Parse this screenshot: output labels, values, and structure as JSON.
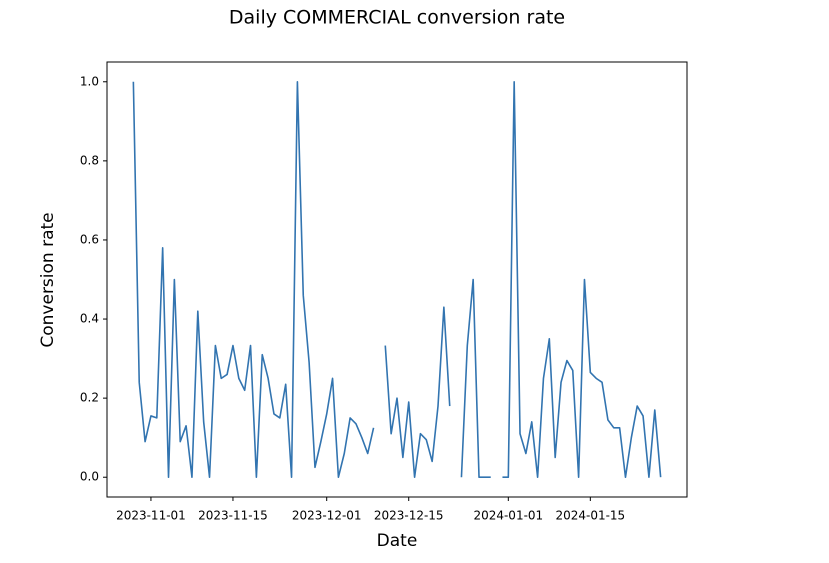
{
  "chart_data": {
    "type": "line",
    "title": "Daily COMMERCIAL conversion rate",
    "x_label": "Date",
    "y_label": "Conversion rate",
    "x": [
      "2023-10-29",
      "2023-10-30",
      "2023-10-31",
      "2023-11-01",
      "2023-11-02",
      "2023-11-03",
      "2023-11-04",
      "2023-11-05",
      "2023-11-06",
      "2023-11-07",
      "2023-11-08",
      "2023-11-09",
      "2023-11-10",
      "2023-11-11",
      "2023-11-12",
      "2023-11-13",
      "2023-11-14",
      "2023-11-15",
      "2023-11-16",
      "2023-11-17",
      "2023-11-18",
      "2023-11-19",
      "2023-11-20",
      "2023-11-21",
      "2023-11-22",
      "2023-11-23",
      "2023-11-24",
      "2023-11-25",
      "2023-11-26",
      "2023-11-27",
      "2023-11-28",
      "2023-11-29",
      "2023-11-30",
      "2023-12-01",
      "2023-12-02",
      "2023-12-03",
      "2023-12-04",
      "2023-12-05",
      "2023-12-06",
      "2023-12-07",
      "2023-12-08",
      "2023-12-09",
      "2023-12-10",
      "2023-12-11",
      "2023-12-12",
      "2023-12-13",
      "2023-12-14",
      "2023-12-15",
      "2023-12-16",
      "2023-12-17",
      "2023-12-18",
      "2023-12-19",
      "2023-12-20",
      "2023-12-21",
      "2023-12-22",
      "2023-12-23",
      "2023-12-24",
      "2023-12-25",
      "2023-12-26",
      "2023-12-27",
      "2023-12-28",
      "2023-12-29",
      "2023-12-30",
      "2023-12-31",
      "2024-01-01",
      "2024-01-02",
      "2024-01-03",
      "2024-01-04",
      "2024-01-05",
      "2024-01-06",
      "2024-01-07",
      "2024-01-08",
      "2024-01-09",
      "2024-01-10",
      "2024-01-11",
      "2024-01-12",
      "2024-01-13",
      "2024-01-14",
      "2024-01-15",
      "2024-01-16",
      "2024-01-17",
      "2024-01-18",
      "2024-01-19",
      "2024-01-20",
      "2024-01-21",
      "2024-01-22",
      "2024-01-23",
      "2024-01-24",
      "2024-01-25",
      "2024-01-26",
      "2024-01-27"
    ],
    "series": [
      {
        "name": "COMMERCIAL",
        "color": "#3274b0",
        "values": [
          1.0,
          0.24,
          0.09,
          0.155,
          0.15,
          0.58,
          0.0,
          0.5,
          0.09,
          0.13,
          0.0,
          0.42,
          0.14,
          0.0,
          0.333,
          0.25,
          0.26,
          0.333,
          0.25,
          0.22,
          0.333,
          0.0,
          0.31,
          0.25,
          0.16,
          0.15,
          0.235,
          0.0,
          1.0,
          0.46,
          0.29,
          0.025,
          0.09,
          0.16,
          0.25,
          0.0,
          0.06,
          0.15,
          0.135,
          0.1,
          0.06,
          0.125,
          null,
          0.333,
          0.11,
          0.2,
          0.05,
          0.19,
          0.0,
          0.11,
          0.095,
          0.04,
          0.18,
          0.43,
          0.18,
          null,
          0.0,
          0.333,
          0.5,
          0.0,
          0.0,
          0.0,
          null,
          0.0,
          0.0,
          1.0,
          0.11,
          0.06,
          0.14,
          0.0,
          0.25,
          0.35,
          0.05,
          0.24,
          0.295,
          0.27,
          0.0,
          0.5,
          0.265,
          0.25,
          0.24,
          0.145,
          0.125,
          0.125,
          0.0,
          0.1,
          0.18,
          0.155,
          0.0,
          0.17,
          0.0
        ]
      }
    ],
    "xlim": [
      "2023-10-24T12:00",
      "2024-01-31T12:00"
    ],
    "xticks": [
      "2023-11-01",
      "2023-11-15",
      "2023-12-01",
      "2023-12-15",
      "2024-01-01",
      "2024-01-15"
    ],
    "ylim": [
      -0.05,
      1.05
    ],
    "yticks": [
      {
        "value": 0,
        "label": "0.0"
      },
      0.2,
      0.4,
      0.6,
      0.8,
      {
        "value": 1,
        "label": "1.0"
      }
    ],
    "grid": false
  }
}
